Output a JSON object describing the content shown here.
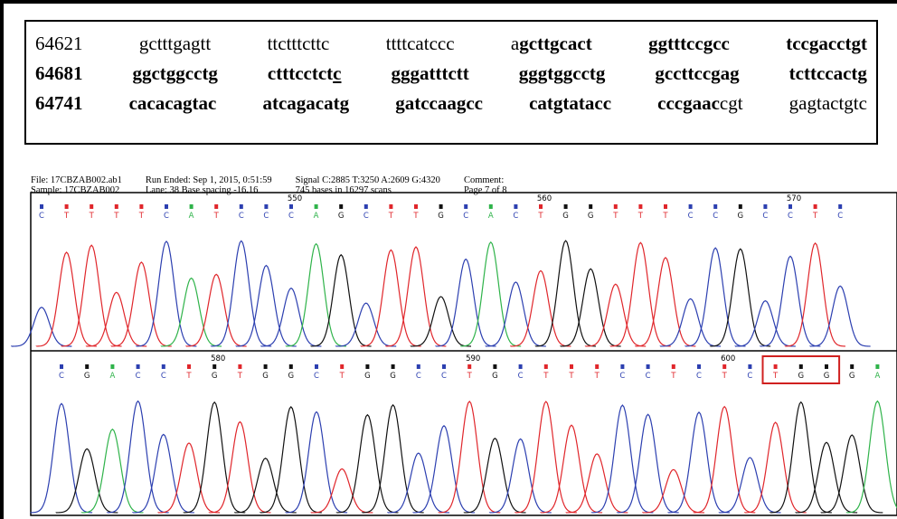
{
  "sequence_lines": [
    [
      [
        {
          "text": "64621"
        }
      ],
      [
        {
          "text": "gctttgagtt"
        }
      ],
      [
        {
          "text": "ttctttcttc"
        }
      ],
      [
        {
          "text": "ttttcatccc"
        }
      ],
      [
        {
          "text": "a"
        },
        {
          "text": "gcttgcact",
          "bold": true
        }
      ],
      [
        {
          "text": "ggtttccgcc",
          "bold": true
        }
      ],
      [
        {
          "text": "tccgacctgt",
          "bold": true
        }
      ]
    ],
    [
      [
        {
          "text": "64681",
          "bold": true
        }
      ],
      [
        {
          "text": "ggctggcctg",
          "bold": true
        }
      ],
      [
        {
          "text": "ctttcctct",
          "bold": true
        },
        {
          "text": "c",
          "bold": true,
          "underline": true
        }
      ],
      [
        {
          "text": "ggg",
          "bold": true,
          "underline": true
        },
        {
          "text": "atttctt",
          "bold": true
        }
      ],
      [
        {
          "text": "gggtggcctg",
          "bold": true
        }
      ],
      [
        {
          "text": "gccttccgag",
          "bold": true
        }
      ],
      [
        {
          "text": "tcttccactg",
          "bold": true
        }
      ]
    ],
    [
      [
        {
          "text": "64741",
          "bold": true
        }
      ],
      [
        {
          "text": "cacacagtac",
          "bold": true
        }
      ],
      [
        {
          "text": "atcagacatg",
          "bold": true
        }
      ],
      [
        {
          "text": "gatccaagcc",
          "bold": true
        }
      ],
      [
        {
          "text": "catgtatacc",
          "bold": true
        }
      ],
      [
        {
          "text": "cccgaac",
          "bold": true
        },
        {
          "text": "cgt"
        }
      ],
      [
        {
          "text": "gagtactgtc"
        }
      ]
    ]
  ],
  "header": [
    [
      "File: 17CBZAB002.ab1",
      "Sample: 17CBZAB002"
    ],
    [
      "Run Ended: Sep 1, 2015, 0:51:59",
      "Lane: 38   Base spacing -16.16"
    ],
    [
      "Signal C:2885 T:3250 A:2609 G:4320",
      "745 bases in 16297 scans"
    ],
    [
      "Comment:",
      "Page 7 of 8"
    ]
  ],
  "panels": [
    {
      "bases": [
        "C",
        "T",
        "T",
        "T",
        "T",
        "C",
        "A",
        "T",
        "C",
        "C",
        "C",
        "A",
        "G",
        "C",
        "T",
        "T",
        "G",
        "C",
        "A",
        "C",
        "T",
        "G",
        "G",
        "T",
        "T",
        "T",
        "C",
        "C",
        "G",
        "C",
        "C",
        "T",
        "C"
      ],
      "position_labels": [
        "550",
        "560",
        "570"
      ]
    },
    {
      "bases": [
        "C",
        "G",
        "A",
        "C",
        "C",
        "T",
        "G",
        "T",
        "G",
        "G",
        "C",
        "T",
        "G",
        "G",
        "C",
        "C",
        "T",
        "G",
        "C",
        "T",
        "T",
        "T",
        "C",
        "C",
        "T",
        "C",
        "T",
        "C",
        "T",
        "G",
        "G",
        "G",
        "A"
      ],
      "position_labels": [
        "580",
        "590",
        "600"
      ]
    }
  ],
  "base_colors": {
    "A": "#2fb34a",
    "C": "#2c3fb0",
    "G": "#111111",
    "T": "#e0262b"
  }
}
